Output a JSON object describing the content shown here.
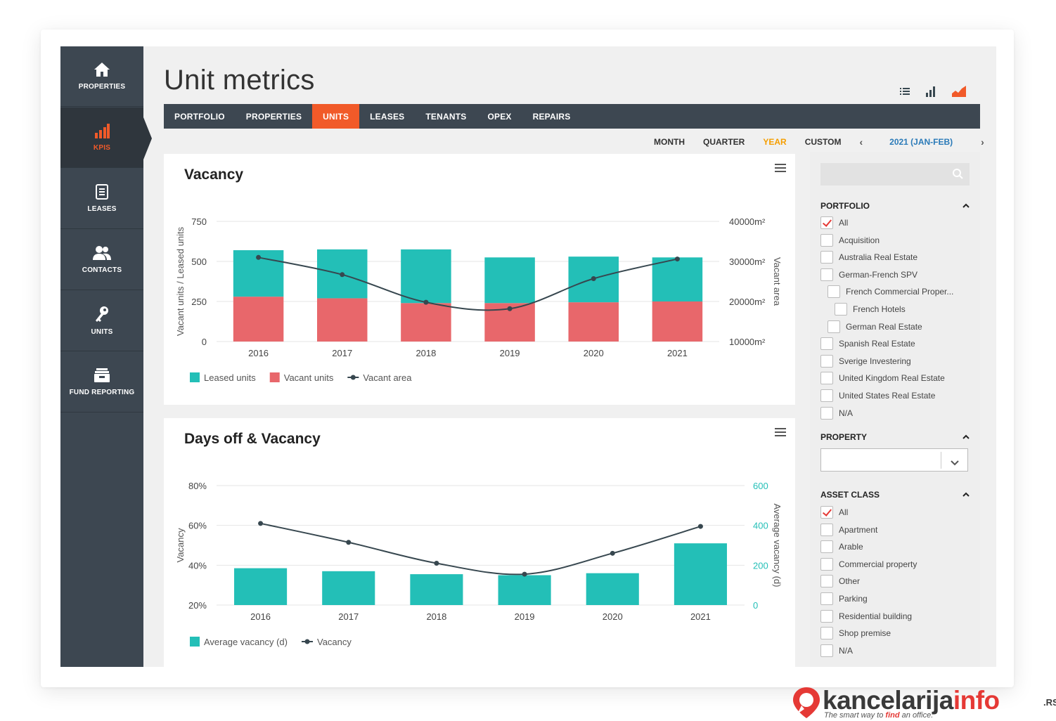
{
  "sidebar": {
    "items": [
      {
        "label": "PROPERTIES",
        "icon": "home-icon"
      },
      {
        "label": "KPIS",
        "icon": "bar-chart-icon",
        "active": true
      },
      {
        "label": "LEASES",
        "icon": "document-icon"
      },
      {
        "label": "CONTACTS",
        "icon": "users-icon"
      },
      {
        "label": "UNITS",
        "icon": "key-icon"
      },
      {
        "label": "FUND REPORTING",
        "icon": "archive-icon"
      }
    ]
  },
  "header": {
    "title": "Unit metrics"
  },
  "view_icons": [
    "list-icon",
    "bar-chart-icon",
    "area-chart-icon"
  ],
  "tabs": [
    "PORTFOLIO",
    "PROPERTIES",
    "UNITS",
    "LEASES",
    "TENANTS",
    "OPEX",
    "REPAIRS"
  ],
  "active_tab": "UNITS",
  "periods": {
    "items": [
      "MONTH",
      "QUARTER",
      "YEAR",
      "CUSTOM"
    ],
    "active": "YEAR",
    "prev_arrow": "‹",
    "next_arrow": "›",
    "range": "2021 (JAN-FEB)"
  },
  "colors": {
    "accent": "#f15a29",
    "teal": "#23bfb7",
    "salmon": "#e8676b",
    "line": "#37474f",
    "sidebar": "#3d4751",
    "year_active": "#f59e00",
    "range_link": "#2a7ab8"
  },
  "panels": {
    "vacancy_title": "Vacancy",
    "days_title": "Days off & Vacancy"
  },
  "chart_data": [
    {
      "type": "bar",
      "title": "Vacancy",
      "stacked": true,
      "categories": [
        "2016",
        "2017",
        "2018",
        "2019",
        "2020",
        "2021"
      ],
      "series": [
        {
          "name": "Leased units",
          "kind": "bar",
          "color": "#23bfb7",
          "values": [
            290,
            305,
            335,
            285,
            285,
            275
          ]
        },
        {
          "name": "Vacant units",
          "kind": "bar",
          "color": "#e8676b",
          "values": [
            280,
            270,
            240,
            240,
            245,
            250
          ]
        },
        {
          "name": "Vacant area",
          "kind": "line",
          "axis": "right",
          "color": "#37474f",
          "values": [
            31000,
            26700,
            19800,
            18200,
            25700,
            30600
          ]
        }
      ],
      "ylabel": "Vacant units / Leased units",
      "ylabel_right": "Vacant area",
      "ylim": [
        0,
        750
      ],
      "yticks": [
        "0",
        "250",
        "500",
        "750"
      ],
      "ylim_right": [
        10000,
        40000
      ],
      "yticks_right": [
        "10000m²",
        "20000m²",
        "30000m²",
        "40000m²"
      ],
      "grid": true,
      "legend": "bottom-left"
    },
    {
      "type": "bar",
      "title": "Days off & Vacancy",
      "categories": [
        "2016",
        "2017",
        "2018",
        "2019",
        "2020",
        "2021"
      ],
      "series": [
        {
          "name": "Average vacancy (d)",
          "kind": "bar",
          "axis": "right",
          "color": "#23bfb7",
          "values": [
            185,
            170,
            155,
            150,
            160,
            310
          ]
        },
        {
          "name": "Vacancy",
          "kind": "line",
          "axis": "left",
          "color": "#37474f",
          "values": [
            61,
            51.5,
            41,
            35.5,
            46,
            59.5
          ]
        }
      ],
      "ylabel": "Vacancy",
      "ylabel_right": "Average vacancy (d)",
      "ylim": [
        20,
        80
      ],
      "yticks": [
        "20%",
        "40%",
        "60%",
        "80%"
      ],
      "ylim_right": [
        0,
        600
      ],
      "yticks_right": [
        "0",
        "200",
        "400",
        "600"
      ],
      "grid": true,
      "legend": "bottom-left"
    }
  ],
  "filters": {
    "search_placeholder": "",
    "portfolio": {
      "title": "PORTFOLIO",
      "items": [
        {
          "label": "All",
          "checked": true,
          "indent": 0
        },
        {
          "label": "Acquisition",
          "checked": false,
          "indent": 0
        },
        {
          "label": "Australia Real Estate",
          "checked": false,
          "indent": 0
        },
        {
          "label": "German-French SPV",
          "checked": false,
          "indent": 0
        },
        {
          "label": "French Commercial Proper...",
          "checked": false,
          "indent": 1
        },
        {
          "label": "French Hotels",
          "checked": false,
          "indent": 2
        },
        {
          "label": "German Real Estate",
          "checked": false,
          "indent": 1
        },
        {
          "label": "Spanish Real Estate",
          "checked": false,
          "indent": 0
        },
        {
          "label": "Sverige Investering",
          "checked": false,
          "indent": 0
        },
        {
          "label": "United Kingdom Real Estate",
          "checked": false,
          "indent": 0
        },
        {
          "label": "United States Real Estate",
          "checked": false,
          "indent": 0
        },
        {
          "label": "N/A",
          "checked": false,
          "indent": 0
        }
      ]
    },
    "property": {
      "title": "PROPERTY",
      "selected": ""
    },
    "asset_class": {
      "title": "ASSET CLASS",
      "items": [
        {
          "label": "All",
          "checked": true
        },
        {
          "label": "Apartment",
          "checked": false
        },
        {
          "label": "Arable",
          "checked": false
        },
        {
          "label": "Commercial property",
          "checked": false
        },
        {
          "label": "Other",
          "checked": false
        },
        {
          "label": "Parking",
          "checked": false
        },
        {
          "label": "Residential building",
          "checked": false
        },
        {
          "label": "Shop premise",
          "checked": false
        },
        {
          "label": "N/A",
          "checked": false
        }
      ]
    }
  },
  "watermark": {
    "brand_dark": "kancelarija",
    "brand_accent": "info",
    "suffix": ".RS",
    "tagline_start": "The smart way to ",
    "tagline_accent": "find",
    "tagline_end": " an office."
  }
}
